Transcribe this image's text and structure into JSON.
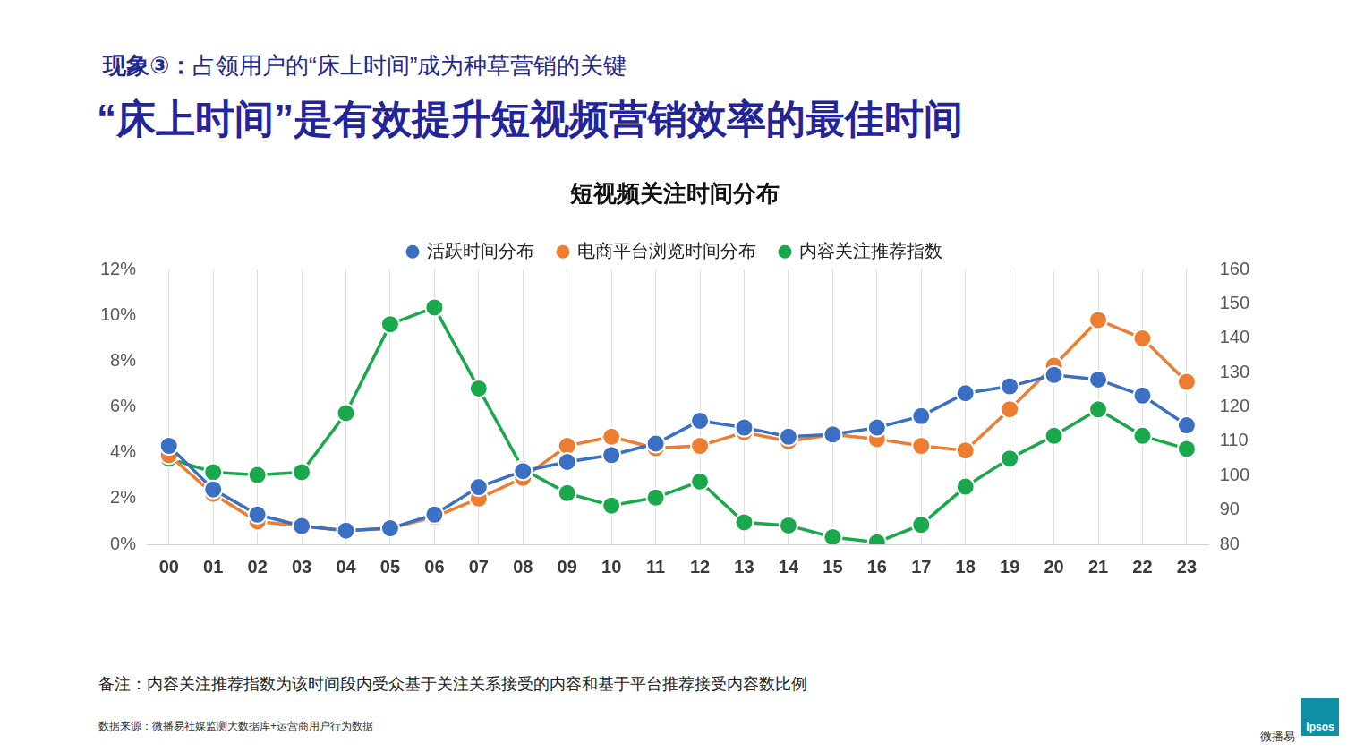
{
  "page": {
    "header": "现象③：占领用户的“床上时间”成为种草营销的关键",
    "title": "“床上时间”是有效提升短视频营销效率的最佳时间",
    "note": "备注：内容关注推荐指数为该时间段内受众基于关注关系接受的内容和基于平台推荐接受内容数比例",
    "source": "数据来源：微播易社媒监测大数据库+运营商用户行为数据",
    "brands": [
      "微播易",
      "Ipsos"
    ]
  },
  "chart_data": {
    "type": "line",
    "title": "短视频关注时间分布",
    "categories": [
      "00",
      "01",
      "02",
      "03",
      "04",
      "05",
      "06",
      "07",
      "08",
      "09",
      "10",
      "11",
      "12",
      "13",
      "14",
      "15",
      "16",
      "17",
      "18",
      "19",
      "20",
      "21",
      "22",
      "23"
    ],
    "series": [
      {
        "name": "活跃时间分布",
        "color": "#3a6fc4",
        "marker": "circle",
        "axis": "y",
        "values": [
          4.3,
          2.4,
          1.3,
          0.8,
          0.6,
          0.7,
          1.3,
          2.5,
          3.2,
          3.6,
          3.9,
          4.4,
          5.4,
          5.1,
          4.7,
          4.8,
          5.1,
          5.6,
          6.6,
          6.9,
          7.4,
          7.2,
          6.5,
          5.2
        ]
      },
      {
        "name": "电商平台浏览时间分布",
        "color": "#ed7d31",
        "marker": "circle",
        "axis": "y",
        "values": [
          3.9,
          2.2,
          1.0,
          0.8,
          0.6,
          0.7,
          1.2,
          2.0,
          2.9,
          4.3,
          4.7,
          4.2,
          4.3,
          4.9,
          4.5,
          4.8,
          4.6,
          4.3,
          4.1,
          5.9,
          7.8,
          9.8,
          9.0,
          7.1
        ]
      },
      {
        "name": "内容关注推荐指数",
        "color": "#1aa84c",
        "marker": "circle",
        "axis": "y2",
        "values": [
          105,
          101,
          100.2,
          101,
          118.2,
          144.1,
          149,
          125.4,
          101.9,
          94.9,
          91.3,
          93.6,
          98.3,
          86.4,
          85.5,
          82.1,
          80.6,
          85.7,
          96.8,
          105,
          111.6,
          119.3,
          111.6,
          107.8
        ]
      }
    ],
    "ylim": [
      0,
      12
    ],
    "yticks": [
      {
        "value": 0,
        "label": "0%"
      },
      {
        "value": 2,
        "label": "2%"
      },
      {
        "value": 4,
        "label": "4%"
      },
      {
        "value": 6,
        "label": "6%"
      },
      {
        "value": 8,
        "label": "8%"
      },
      {
        "value": 10,
        "label": "10%"
      },
      {
        "value": 12,
        "label": "12%"
      }
    ],
    "y2lim": [
      80,
      160
    ],
    "y2ticks": [
      80,
      90,
      100,
      110,
      120,
      130,
      140,
      150,
      160
    ],
    "grid": "x",
    "legend": "top"
  }
}
